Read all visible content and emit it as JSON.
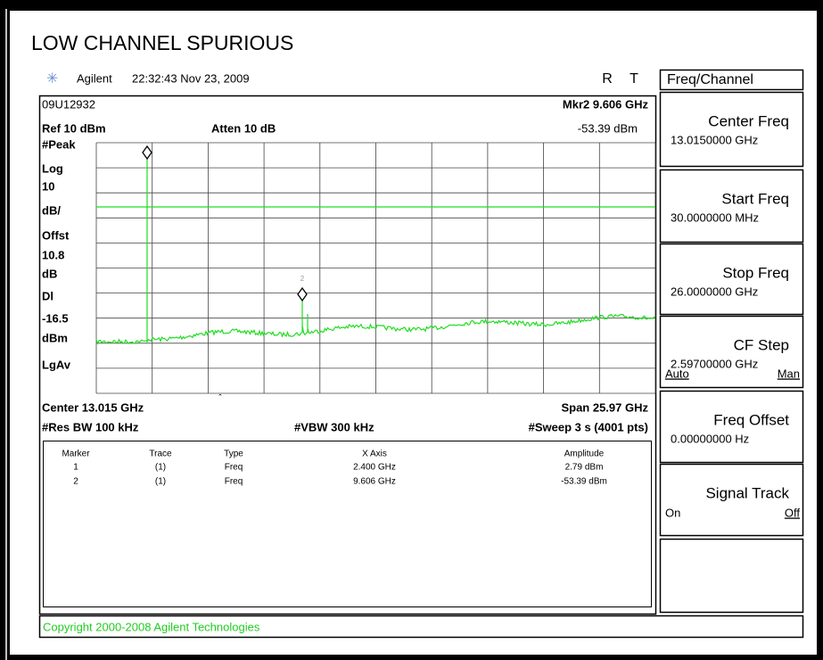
{
  "title": "LOW CHANNEL SPURIOUS",
  "header": {
    "brand": "Agilent",
    "timestamp": "22:32:43  Nov 23, 2009",
    "indicators": [
      "R",
      "T"
    ]
  },
  "screen": {
    "id": "09U12932",
    "marker_readout": "Mkr2  9.606 GHz",
    "ref_level": "Ref 10 dBm",
    "attenuation": "Atten 10 dB",
    "marker_amplitude": "-53.39 dBm",
    "left_labels": [
      "#Peak",
      "Log",
      "10",
      "dB/",
      "Offst",
      "10.8",
      "dB",
      "Dl",
      "-16.5",
      "dBm",
      "LgAv"
    ],
    "marker_label": "2",
    "center": "Center 13.015 GHz",
    "span": "Span 25.97 GHz",
    "res_bw": "#Res BW 100 kHz",
    "vbw": "#VBW 300 kHz",
    "sweep": "#Sweep 3 s (4001 pts)"
  },
  "table": {
    "headers": [
      "Marker",
      "Trace",
      "Type",
      "X Axis",
      "Amplitude"
    ],
    "rows": [
      [
        "1",
        "(1)",
        "Freq",
        "2.400 GHz",
        "2.79 dBm"
      ],
      [
        "2",
        "(1)",
        "Freq",
        "9.606 GHz",
        "-53.39 dBm"
      ]
    ]
  },
  "menu_title": "Freq/Channel",
  "softkeys": [
    {
      "label": "Center Freq",
      "value": "13.0150000 GHz"
    },
    {
      "label": "Start Freq",
      "value": "30.0000000 MHz"
    },
    {
      "label": "Stop Freq",
      "value": "26.0000000 GHz"
    },
    {
      "label": "CF Step",
      "value": "2.59700000 GHz",
      "options": [
        "Auto",
        "Man"
      ]
    },
    {
      "label": "Freq Offset",
      "value": "0.00000000  Hz"
    },
    {
      "label": "Signal Track",
      "options": [
        "On",
        "Off"
      ]
    }
  ],
  "copyright": "Copyright 2000-2008 Agilent Technologies"
}
